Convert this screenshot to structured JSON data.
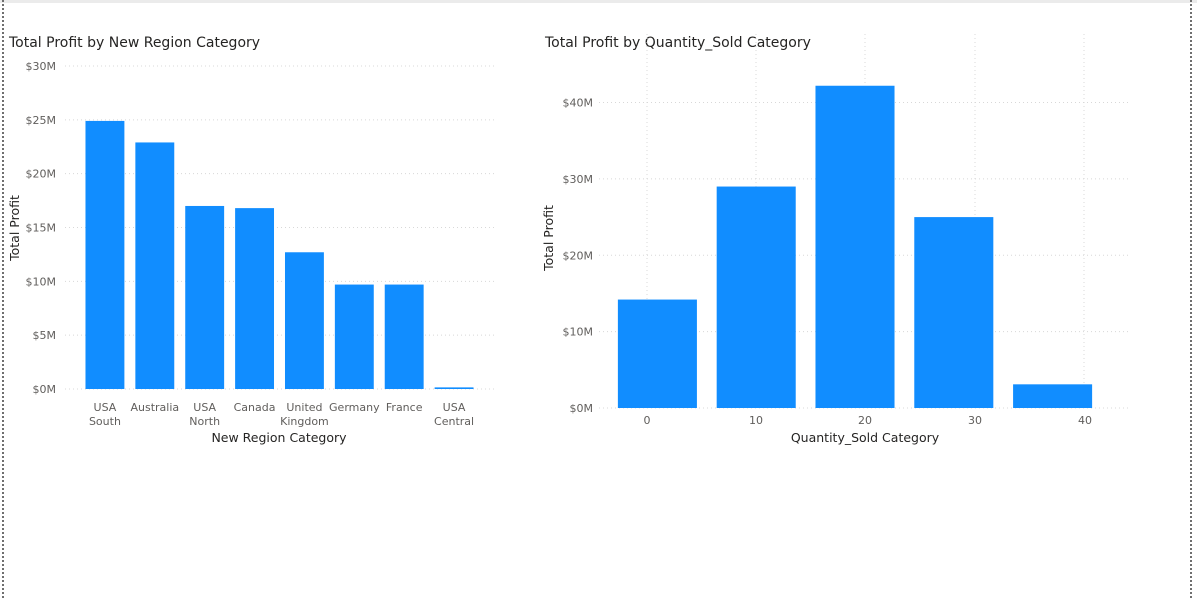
{
  "colors": {
    "bar": "#118DFF",
    "grid": "#d8d8d8",
    "tick_text": "#605e5c",
    "title_text": "#252423"
  },
  "chart_data": [
    {
      "type": "bar",
      "title": "Total Profit by New Region Category",
      "xlabel": "New Region Category",
      "ylabel": "Total Profit",
      "categories": [
        [
          "USA",
          "South"
        ],
        [
          "Australia"
        ],
        [
          "USA",
          "North"
        ],
        [
          "Canada"
        ],
        [
          "United",
          "Kingdom"
        ],
        [
          "Germany"
        ],
        [
          "France"
        ],
        [
          "USA",
          "Central"
        ]
      ],
      "values": [
        24.9,
        22.9,
        17.0,
        16.8,
        12.7,
        9.7,
        9.7,
        0.15
      ],
      "value_unit": "$M",
      "ylim": [
        0,
        30
      ],
      "yticks": [
        0,
        5,
        10,
        15,
        20,
        25,
        30
      ],
      "ytick_labels": [
        "$0M",
        "$5M",
        "$10M",
        "$15M",
        "$20M",
        "$25M",
        "$30M"
      ],
      "grid": true
    },
    {
      "type": "bar",
      "title": "Total Profit by Quantity_Sold Category",
      "xlabel": "Quantity_Sold Category",
      "ylabel": "Total Profit",
      "x": [
        0,
        10,
        20,
        30,
        40
      ],
      "xtick_labels": [
        "0",
        "10",
        "20",
        "30",
        "40"
      ],
      "values": [
        14.2,
        29.0,
        42.2,
        25.0,
        3.1
      ],
      "value_unit": "$M",
      "ylim": [
        0,
        44
      ],
      "yticks": [
        0,
        10,
        20,
        30,
        40
      ],
      "ytick_labels": [
        "$0M",
        "$10M",
        "$20M",
        "$30M",
        "$40M"
      ],
      "grid": true
    }
  ]
}
